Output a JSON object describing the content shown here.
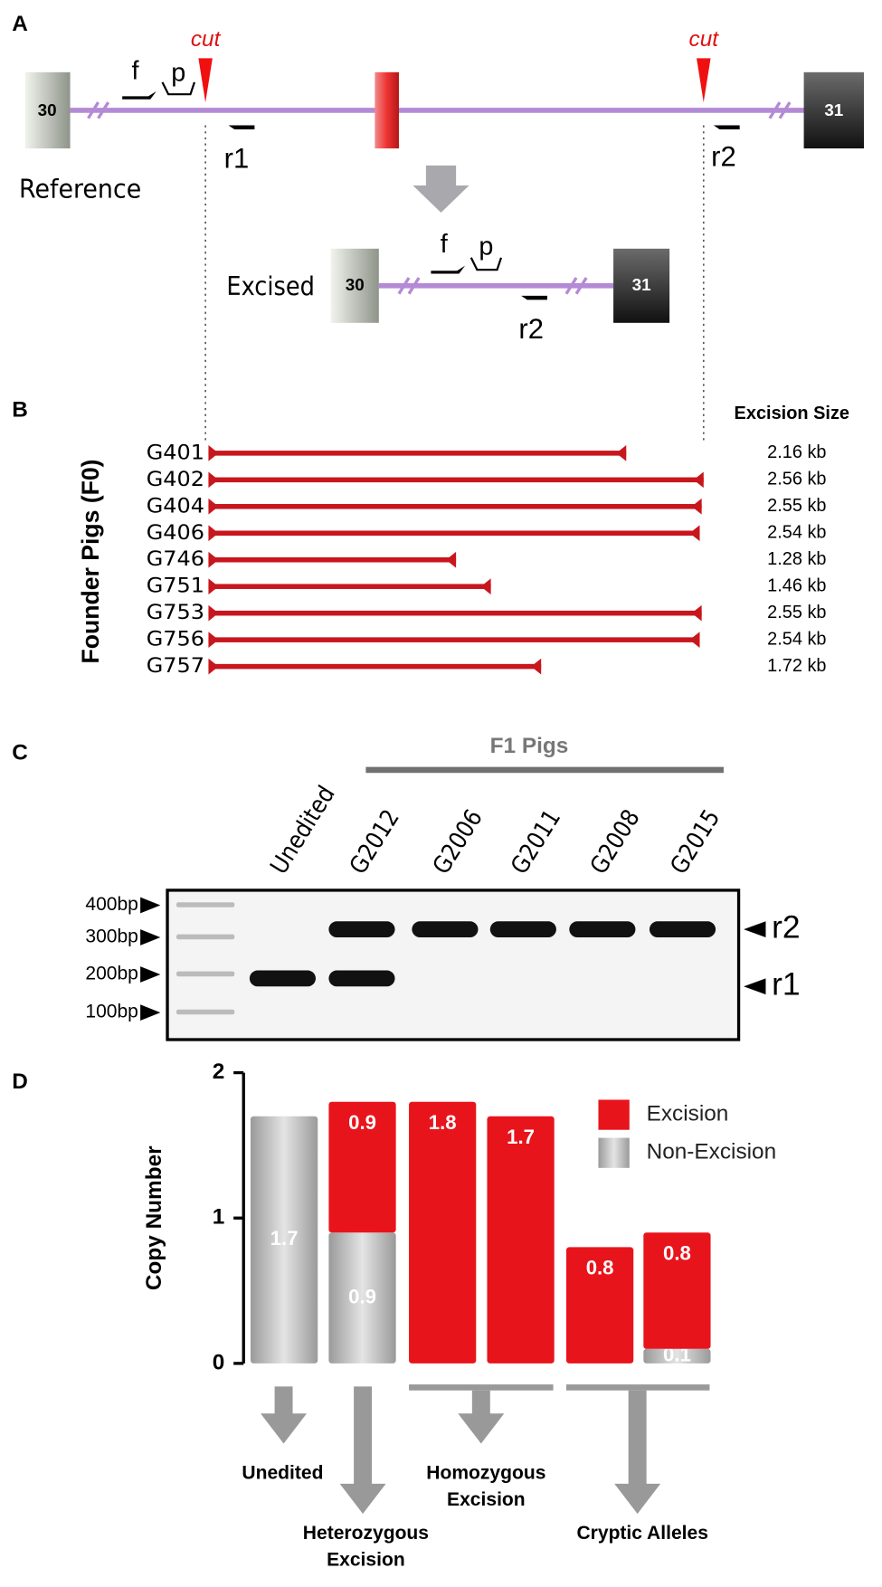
{
  "panel_a": {
    "label": "A",
    "cut_labels": [
      "cut",
      "cut"
    ],
    "exon_labels": [
      "30",
      "31"
    ],
    "reference": "Reference",
    "excised": "Excised",
    "primers": {
      "f": "f",
      "p": "p",
      "r1": "r1",
      "r2": "r2"
    }
  },
  "panel_b": {
    "label": "B",
    "ylabel": "Founder Pigs (F0)",
    "size_header": "Excision Size",
    "pigs": [
      "G401",
      "G402",
      "G404",
      "G406",
      "G746",
      "G751",
      "G753",
      "G756",
      "G757"
    ],
    "sizes": [
      2.16,
      2.56,
      2.55,
      2.54,
      1.28,
      1.46,
      2.55,
      2.54,
      1.72
    ],
    "size_labels": [
      "2.16 kb",
      "2.56 kb",
      "2.55 kb",
      "2.54 kb",
      "1.28 kb",
      "1.46 kb",
      "2.55 kb",
      "2.54 kb",
      "1.72 kb"
    ],
    "xlim": [
      0,
      2.56
    ],
    "color": "#c8161d"
  },
  "panel_c": {
    "label": "C",
    "group_title": "F1 Pigs",
    "lanes": [
      "Unedited",
      "G2012",
      "G2006",
      "G2011",
      "G2008",
      "G2015"
    ],
    "ladder": [
      "400bp",
      "300bp",
      "200bp",
      "100bp"
    ],
    "band_labels": [
      "r2",
      "r1"
    ]
  },
  "chart_data": {
    "type": "bar",
    "stacked": true,
    "label": "D",
    "ylabel": "Copy Number",
    "ylim": [
      0,
      2
    ],
    "yticks": [
      0,
      1,
      2
    ],
    "categories": [
      null,
      null,
      null,
      null,
      null,
      null
    ],
    "series": [
      {
        "name": "Non-Excision",
        "color": "#b3b3b3",
        "values": [
          1.7,
          0.9,
          null,
          null,
          null,
          0.1
        ]
      },
      {
        "name": "Excision",
        "color": "#e8141c",
        "values": [
          null,
          0.9,
          1.8,
          1.7,
          0.8,
          0.8
        ]
      }
    ],
    "groups": [
      [
        "Unedited"
      ],
      [
        "Heterozygous",
        "Excision"
      ],
      [
        "Homozygous",
        "Excision"
      ],
      [
        "Cryptic Alleles"
      ]
    ]
  }
}
